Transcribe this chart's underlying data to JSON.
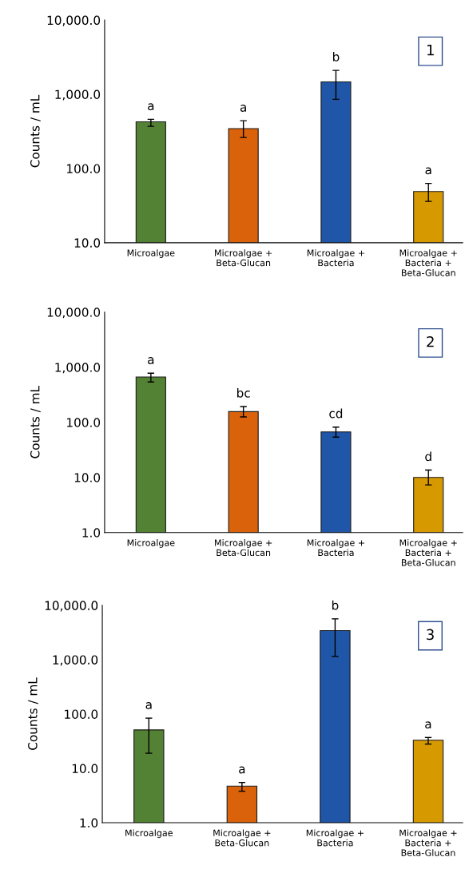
{
  "chart_data": [
    {
      "type": "bar",
      "ylabel": "Counts / mL",
      "log": true,
      "ylim": [
        10,
        10000
      ],
      "yticks": [
        {
          "value": 10,
          "label": "10.0"
        },
        {
          "value": 100,
          "label": "100.0"
        },
        {
          "value": 1000,
          "label": "1,000.0"
        },
        {
          "value": 10000,
          "label": "10,000.0"
        }
      ],
      "categories": [
        "Microalgae",
        "Microalgae + Beta-Glucan",
        "Microalgae + Bacteria",
        "Microalgae + Bacteria + Beta-Glucan"
      ],
      "values": [
        425,
        345,
        1470,
        49
      ],
      "errors": [
        [
          370,
          460
        ],
        [
          262,
          440
        ],
        [
          855,
          2100
        ],
        [
          36,
          63
        ]
      ],
      "colors": [
        "#548235",
        "#d9620a",
        "#2056a8",
        "#d69a00"
      ],
      "annotations": [
        "1",
        {
          "text": "a",
          "x": "Microalgae",
          "y": 460
        },
        {
          "text": "a",
          "x": "Microalgae + Beta-Glucan",
          "y": 440
        },
        {
          "text": "b",
          "x": "Microalgae + Bacteria",
          "y": 2100
        },
        {
          "text": "a",
          "x": "Microalgae + Bacteria + Beta-Glucan",
          "y": 63
        }
      ]
    },
    {
      "type": "bar",
      "ylabel": "Counts / mL",
      "log": true,
      "ylim": [
        1,
        10000
      ],
      "yticks": [
        {
          "value": 1,
          "label": "1.0"
        },
        {
          "value": 10,
          "label": "10.0"
        },
        {
          "value": 100,
          "label": "100.0"
        },
        {
          "value": 1000,
          "label": "1,000.0"
        },
        {
          "value": 10000,
          "label": "10,000.0"
        }
      ],
      "categories": [
        "Microalgae",
        "Microalgae + Beta-Glucan",
        "Microalgae + Bacteria",
        "Microalgae + Bacteria + Beta-Glucan"
      ],
      "values": [
        665,
        156,
        67,
        10
      ],
      "errors": [
        [
          540,
          780
        ],
        [
          125,
          193
        ],
        [
          54,
          82
        ],
        [
          7.3,
          13.6
        ]
      ],
      "colors": [
        "#548235",
        "#d9620a",
        "#2056a8",
        "#d69a00"
      ],
      "annotations": [
        "2",
        {
          "text": "a",
          "x": "Microalgae",
          "y": 780
        },
        {
          "text": "bc",
          "x": "Microalgae + Beta-Glucan",
          "y": 193
        },
        {
          "text": "cd",
          "x": "Microalgae + Bacteria",
          "y": 82
        },
        {
          "text": "d",
          "x": "Microalgae + Bacteria + Beta-Glucan",
          "y": 13.6
        }
      ]
    },
    {
      "type": "bar",
      "ylabel": "Counts / mL",
      "log": true,
      "ylim": [
        1,
        10000
      ],
      "yticks": [
        {
          "value": 1,
          "label": "1.0"
        },
        {
          "value": 10,
          "label": "10.0"
        },
        {
          "value": 100,
          "label": "100.0"
        },
        {
          "value": 1000,
          "label": "1,000.0"
        },
        {
          "value": 10000,
          "label": "10,000.0"
        }
      ],
      "categories": [
        "Microalgae",
        "Microalgae + Beta-Glucan",
        "Microalgae + Bacteria",
        "Microalgae + Bacteria + Beta-Glucan"
      ],
      "values": [
        51,
        4.7,
        3430,
        33
      ],
      "errors": [
        [
          19,
          84
        ],
        [
          3.8,
          5.5
        ],
        [
          1150,
          5640
        ],
        [
          28,
          37
        ]
      ],
      "colors": [
        "#548235",
        "#d9620a",
        "#2056a8",
        "#d69a00"
      ],
      "annotations": [
        "3",
        {
          "text": "a",
          "x": "Microalgae",
          "y": 84
        },
        {
          "text": "a",
          "x": "Microalgae + Beta-Glucan",
          "y": 5.5
        },
        {
          "text": "b",
          "x": "Microalgae + Bacteria",
          "y": 5640
        },
        {
          "text": "a",
          "x": "Microalgae + Bacteria + Beta-Glucan",
          "y": 37
        }
      ]
    }
  ]
}
